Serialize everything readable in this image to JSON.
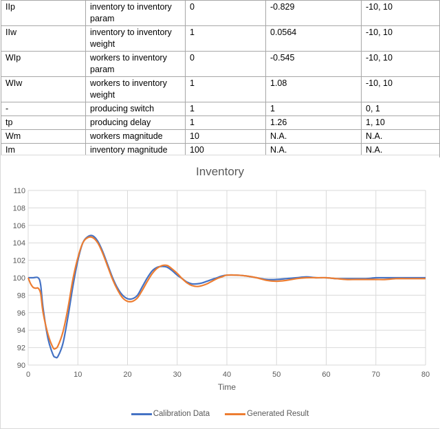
{
  "table": {
    "rows": [
      {
        "symbol": "IIp",
        "description": "inventory to inventory param",
        "initial": "0",
        "calibrated": "-0.829",
        "range": "-10, 10"
      },
      {
        "symbol": "IIw",
        "description": "inventory to inventory weight",
        "initial": "1",
        "calibrated": "0.0564",
        "range": "-10, 10"
      },
      {
        "symbol": "WIp",
        "description": "workers to inventory param",
        "initial": "0",
        "calibrated": "-0.545",
        "range": "-10, 10"
      },
      {
        "symbol": "WIw",
        "description": "workers to inventory weight",
        "initial": "1",
        "calibrated": "1.08",
        "range": "-10, 10"
      },
      {
        "symbol": "-",
        "description": "producing switch",
        "initial": "1",
        "calibrated": "1",
        "range": "0, 1"
      },
      {
        "symbol": "tp",
        "description": "producing delay",
        "initial": "1",
        "calibrated": "1.26",
        "range": "1, 10"
      },
      {
        "symbol": "Wm",
        "description": "workers magnitude",
        "initial": "10",
        "calibrated": "N.A.",
        "range": "N.A."
      },
      {
        "symbol": "Im",
        "description": "inventory magnitude",
        "initial": "100",
        "calibrated": "N.A.",
        "range": "N.A."
      }
    ]
  },
  "chart_data": {
    "type": "line",
    "title": "Inventory",
    "xlabel": "Time",
    "ylabel": "",
    "xlim": [
      0,
      80
    ],
    "ylim": [
      90,
      110
    ],
    "x_ticks": [
      0,
      10,
      20,
      30,
      40,
      50,
      60,
      70,
      80
    ],
    "y_ticks": [
      90,
      92,
      94,
      96,
      98,
      100,
      102,
      104,
      106,
      108,
      110
    ],
    "grid": true,
    "legend_position": "bottom",
    "series": [
      {
        "name": "Calibration Data",
        "color": "#4472c4",
        "x": [
          0,
          1,
          2,
          2.5,
          3,
          4,
          5,
          5.5,
          6,
          7,
          8,
          9,
          10,
          11,
          12,
          13,
          14,
          15,
          16,
          17,
          18,
          19,
          20,
          21,
          22,
          23,
          24,
          25,
          26,
          27,
          28,
          29,
          30,
          31,
          32,
          33,
          34,
          35,
          36,
          37,
          38,
          39,
          40,
          42,
          44,
          46,
          48,
          50,
          52,
          54,
          56,
          58,
          60,
          62,
          64,
          66,
          68,
          70,
          72,
          74,
          76,
          78,
          80
        ],
        "values": [
          100,
          100,
          100,
          99.2,
          96.5,
          93.0,
          91.2,
          90.9,
          91.0,
          92.5,
          95.5,
          99.0,
          102.0,
          104.0,
          104.7,
          104.8,
          104.2,
          103.0,
          101.5,
          100.0,
          98.8,
          98.0,
          97.6,
          97.6,
          98.0,
          99.0,
          100.0,
          100.8,
          101.2,
          101.3,
          101.2,
          100.8,
          100.3,
          99.9,
          99.5,
          99.3,
          99.3,
          99.4,
          99.6,
          99.8,
          100.0,
          100.2,
          100.3,
          100.3,
          100.2,
          100.0,
          99.8,
          99.8,
          99.9,
          100.0,
          100.1,
          100.0,
          100.0,
          99.9,
          99.9,
          99.9,
          99.9,
          100.0,
          100.0,
          100.0,
          100.0,
          100.0,
          100.0
        ]
      },
      {
        "name": "Generated Result",
        "color": "#ed7d31",
        "x": [
          0,
          0.5,
          1,
          1.5,
          2,
          2.5,
          3,
          4,
          5,
          5.5,
          6,
          7,
          8,
          9,
          10,
          11,
          12,
          13,
          14,
          15,
          16,
          17,
          18,
          19,
          20,
          21,
          22,
          23,
          24,
          25,
          26,
          27,
          28,
          29,
          30,
          31,
          32,
          33,
          34,
          35,
          36,
          37,
          38,
          39,
          40,
          42,
          44,
          46,
          48,
          50,
          52,
          54,
          56,
          58,
          60,
          62,
          64,
          66,
          68,
          70,
          72,
          74,
          76,
          78,
          80
        ],
        "values": [
          100,
          99.3,
          98.9,
          98.8,
          98.8,
          98.2,
          96.0,
          93.5,
          92.0,
          91.9,
          92.2,
          93.8,
          96.5,
          99.8,
          102.3,
          104.0,
          104.6,
          104.6,
          104.0,
          102.8,
          101.3,
          99.8,
          98.6,
          97.7,
          97.3,
          97.3,
          97.7,
          98.6,
          99.6,
          100.5,
          101.1,
          101.4,
          101.4,
          101.0,
          100.5,
          99.9,
          99.4,
          99.1,
          99.0,
          99.1,
          99.3,
          99.6,
          99.9,
          100.1,
          100.3,
          100.3,
          100.2,
          100.0,
          99.7,
          99.6,
          99.7,
          99.9,
          100.0,
          100.0,
          100.0,
          99.9,
          99.8,
          99.8,
          99.8,
          99.8,
          99.8,
          99.9,
          99.9,
          99.9,
          99.9
        ]
      }
    ]
  }
}
